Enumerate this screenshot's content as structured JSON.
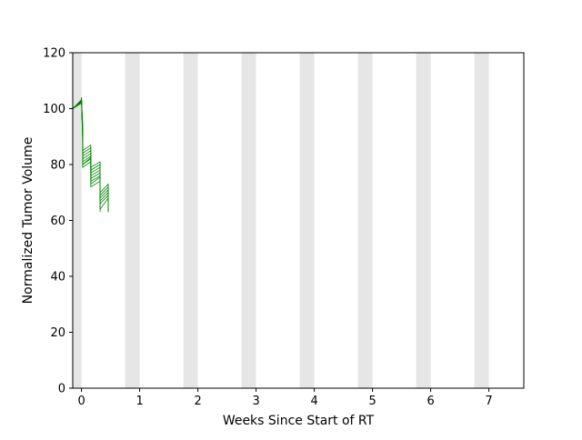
{
  "chart_data": {
    "type": "line",
    "title": "",
    "xlabel": "Weeks Since Start of RT",
    "ylabel": "Normalized Tumor Volume",
    "xlim": [
      -0.15,
      7.6
    ],
    "ylim": [
      0,
      120
    ],
    "x_ticks": [
      0,
      1,
      2,
      3,
      4,
      5,
      6,
      7
    ],
    "y_ticks": [
      0,
      20,
      40,
      60,
      80,
      100,
      120
    ],
    "grid": false,
    "legend": "none",
    "line_color": "#008000",
    "shade_color": "#e6e6e6",
    "weekend_bands": [
      [
        -0.15,
        0
      ],
      [
        0.75,
        1.0
      ],
      [
        1.75,
        2.0
      ],
      [
        2.75,
        3.0
      ],
      [
        3.75,
        4.0
      ],
      [
        4.75,
        5.0
      ],
      [
        5.75,
        6.0
      ],
      [
        6.75,
        7.0
      ]
    ],
    "series": [
      {
        "x": [
          -0.15,
          0.0,
          0.0,
          0.02,
          0.02,
          0.16,
          0.16,
          0.32,
          0.32,
          0.46,
          0.46
        ],
        "y": [
          100,
          103,
          104,
          95,
          85,
          87,
          79,
          81,
          70,
          73,
          64
        ]
      },
      {
        "x": [
          -0.15,
          0.0,
          0.0,
          0.02,
          0.02,
          0.16,
          0.16,
          0.32,
          0.32,
          0.46,
          0.46
        ],
        "y": [
          100,
          102.5,
          103.5,
          94,
          84,
          86,
          78,
          80,
          69,
          72,
          63
        ]
      },
      {
        "x": [
          -0.15,
          0.0,
          0.0,
          0.02,
          0.02,
          0.16,
          0.16,
          0.32,
          0.32,
          0.46,
          0.46
        ],
        "y": [
          100,
          102,
          103,
          93,
          83,
          85,
          77,
          79,
          68,
          71,
          63.5
        ]
      },
      {
        "x": [
          -0.15,
          0.0,
          0.0,
          0.02,
          0.02,
          0.16,
          0.16,
          0.32,
          0.32,
          0.46,
          0.46
        ],
        "y": [
          100,
          102.8,
          103.8,
          92,
          82,
          84,
          76,
          78,
          67,
          70,
          64.5
        ]
      },
      {
        "x": [
          -0.15,
          0.0,
          0.0,
          0.02,
          0.02,
          0.16,
          0.16,
          0.32,
          0.32,
          0.46,
          0.46
        ],
        "y": [
          100,
          102.2,
          103.2,
          91,
          81,
          83,
          75,
          77,
          66,
          69,
          63
        ]
      },
      {
        "x": [
          -0.15,
          0.0,
          0.0,
          0.02,
          0.02,
          0.16,
          0.16,
          0.32,
          0.32,
          0.46,
          0.46
        ],
        "y": [
          100,
          103.2,
          104,
          90,
          80,
          82,
          74,
          76,
          64,
          68,
          64
        ]
      },
      {
        "x": [
          -0.15,
          0.0,
          0.0,
          0.02,
          0.02,
          0.16,
          0.16,
          0.32,
          0.32
        ],
        "y": [
          100,
          102.6,
          103.6,
          89,
          79,
          81,
          72,
          74,
          63
        ]
      },
      {
        "x": [
          -0.15,
          0.0,
          0.0,
          0.02,
          0.02,
          0.16,
          0.16,
          0.32,
          0.32
        ],
        "y": [
          100,
          102.4,
          103.4,
          88,
          80,
          82.5,
          73,
          75.5,
          65
        ]
      }
    ]
  }
}
